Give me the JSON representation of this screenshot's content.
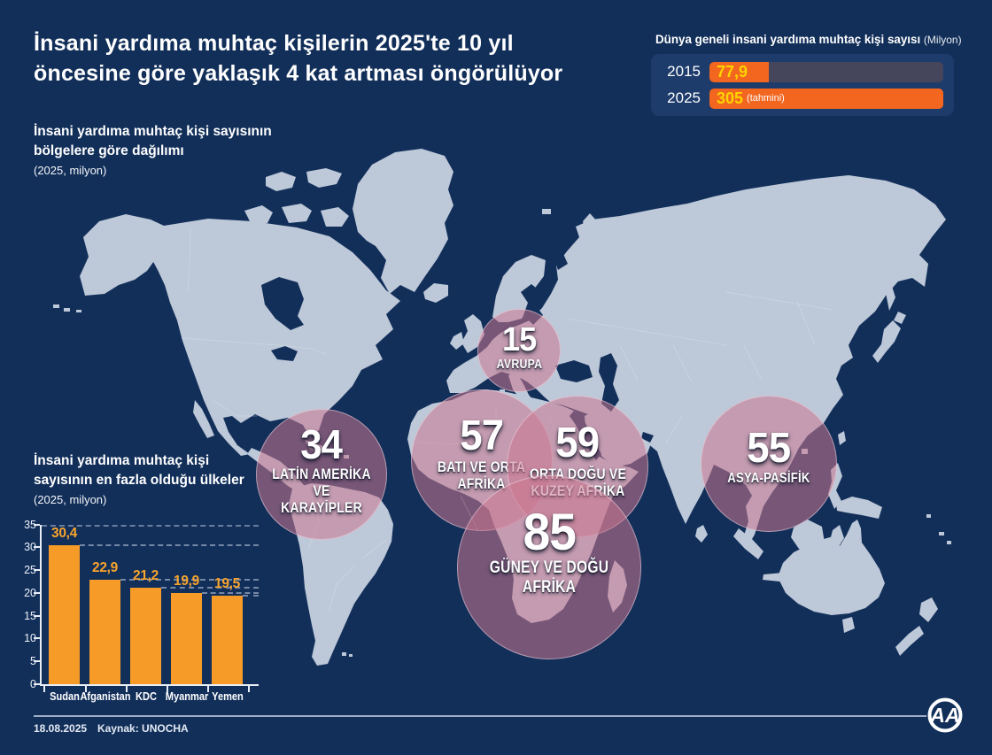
{
  "header": {
    "title_line1": "İnsani yardıma muhtaç kişilerin 2025'te 10 yıl",
    "title_line2": "öncesine göre yaklaşık 4 kat artması öngörülüyor"
  },
  "global_panel": {
    "title": "Dünya geneli insani yardıma muhtaç kişi sayısı",
    "unit": "(Milyon)"
  },
  "map_section": {
    "title_line1": "İnsani yardıma muhtaç kişi sayısının",
    "title_line2": "bölgelere göre dağılımı",
    "subtitle": "(2025, milyon)"
  },
  "countries_section": {
    "title_line1": "İnsani yardıma muhtaç kişi",
    "title_line2": "sayısının en fazla olduğu ülkeler",
    "subtitle": "(2025, milyon)"
  },
  "footer": {
    "date": "18.08.2025",
    "source": "Kaynak: UNOCHA",
    "logo": "AA"
  },
  "colors": {
    "background": "#122F5A",
    "panel": "#1D3B6B",
    "land": "#BDC8D8",
    "bubble": "#CB7690",
    "orange_deep": "#F2661F",
    "orange": "#F79B28",
    "yellow": "#FFD400",
    "track_gray": "#45455C"
  },
  "chart_data": [
    {
      "type": "bar",
      "orientation": "horizontal",
      "title": "Dünya geneli insani yardıma muhtaç kişi sayısı",
      "unit": "Milyon",
      "categories": [
        "2015",
        "2025"
      ],
      "values": [
        77.9,
        305
      ],
      "value_labels": [
        "77,9",
        "305"
      ],
      "notes": [
        "",
        "(tahmini)"
      ],
      "xlim": [
        0,
        305
      ]
    },
    {
      "type": "bubble-map",
      "title": "İnsani yardıma muhtaç kişi sayısının bölgelere göre dağılımı",
      "unit": "2025, milyon",
      "points": [
        {
          "region": "AVRUPA",
          "label": "AVRUPA",
          "value": 15
        },
        {
          "region": "LATİN AMERİKA VE KARAYİPLER",
          "label": "LATİN AMERİKA VE\nKARAYİPLER",
          "value": 34
        },
        {
          "region": "BATI VE ORTA AFRİKA",
          "label": "BATI VE ORTA\nAFRİKA",
          "value": 57
        },
        {
          "region": "ORTA DOĞU VE KUZEY AFRİKA",
          "label": "ORTA DOĞU VE\nKUZEY AFRİKA",
          "value": 59
        },
        {
          "region": "GÜNEY VE DOĞU AFRİKA",
          "label": "GÜNEY VE DOĞU\nAFRİKA",
          "value": 85
        },
        {
          "region": "ASYA-PASİFİK",
          "label": "ASYA-PASİFİK",
          "value": 55
        }
      ]
    },
    {
      "type": "bar",
      "title": "İnsani yardıma muhtaç kişi sayısının en fazla olduğu ülkeler",
      "unit": "2025, milyon",
      "categories": [
        "Sudan",
        "Afganistan",
        "KDC",
        "Myanmar",
        "Yemen"
      ],
      "values": [
        30.4,
        22.9,
        21.2,
        19.9,
        19.5
      ],
      "value_labels": [
        "30,4",
        "22,9",
        "21,2",
        "19,9",
        "19,5"
      ],
      "ylim": [
        0,
        35
      ],
      "yticks": [
        0,
        5,
        10,
        15,
        20,
        25,
        30,
        35
      ]
    }
  ]
}
